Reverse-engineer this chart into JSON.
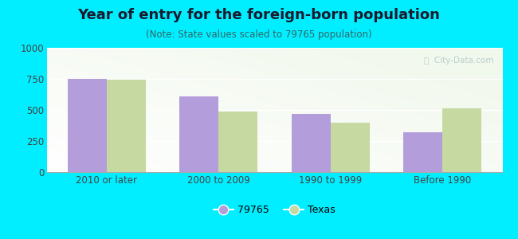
{
  "title": "Year of entry for the foreign-born population",
  "subtitle": "(Note: State values scaled to 79765 population)",
  "categories": [
    "2010 or later",
    "2000 to 2009",
    "1990 to 1999",
    "Before 1990"
  ],
  "values_79765": [
    750,
    610,
    470,
    320
  ],
  "values_texas": [
    745,
    490,
    400,
    510
  ],
  "color_79765": "#b39ddb",
  "color_texas": "#c5d9a0",
  "background_outer": "#00eeff",
  "background_inner_topleft": "#e8f5e9",
  "background_inner_white": "#f8fff8",
  "ylim": [
    0,
    1000
  ],
  "yticks": [
    0,
    250,
    500,
    750,
    1000
  ],
  "legend_label_1": "79765",
  "legend_label_2": "Texas",
  "bar_width": 0.35,
  "title_fontsize": 13,
  "subtitle_fontsize": 8.5,
  "tick_fontsize": 8.5,
  "legend_fontsize": 9,
  "title_color": "#1a1a2e",
  "subtitle_color": "#336666",
  "tick_color": "#444444",
  "watermark_color": "#b0c8c8"
}
